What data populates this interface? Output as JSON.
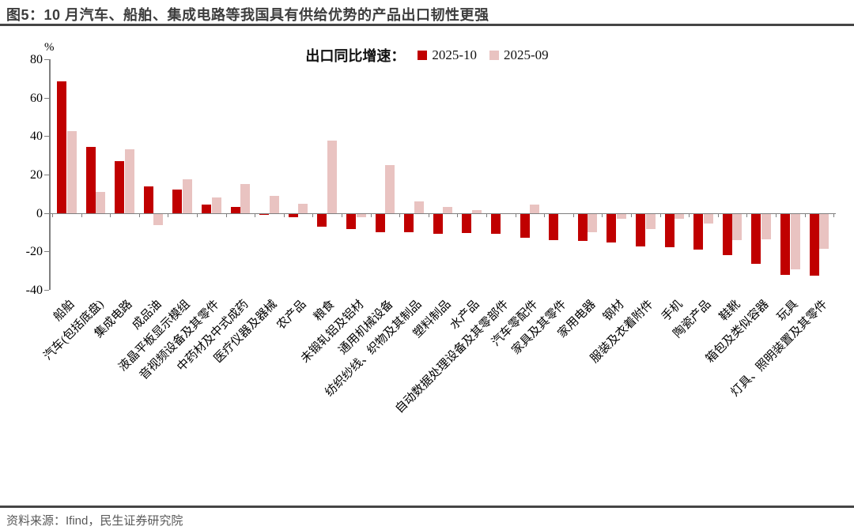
{
  "header": {
    "title": "图5：10 月汽车、船舶、集成电路等我国具有供给优势的产品出口韧性更强"
  },
  "legend": {
    "prefix": "出口同比增速：",
    "series1_label": "2025-10",
    "series2_label": "2025-09"
  },
  "footer": {
    "source": "资料来源：Ifind，民生证券研究院"
  },
  "colors": {
    "series1": "#C00000",
    "series2": "#E9C3C1",
    "axis": "#7f7f7f",
    "rule": "#454545",
    "footer_text": "#595959"
  },
  "chart_data": {
    "type": "bar",
    "title": "出口同比增速",
    "unit": "%",
    "ylabel": "%",
    "ylim": [
      -40,
      80
    ],
    "yticks": [
      80,
      60,
      40,
      20,
      0,
      -20,
      -40
    ],
    "grid": false,
    "legend_position": "top-center",
    "categories": [
      "船舶",
      "汽车(包括底盘)",
      "集成电路",
      "成品油",
      "液晶平板显示模组",
      "音视频设备及其零件",
      "中药材及中式成药",
      "医疗仪器及器械",
      "农产品",
      "粮食",
      "未锻轧铝及铝材",
      "通用机械设备",
      "纺织纱线、织物及其制品",
      "塑料制品",
      "水产品",
      "自动数据处理设备及其零部件",
      "汽车零配件",
      "家具及其零件",
      "家用电器",
      "钢材",
      "服装及衣着附件",
      "手机",
      "陶瓷产品",
      "鞋靴",
      "箱包及类似容器",
      "玩具",
      "灯具、照明装置及其零件"
    ],
    "series": [
      {
        "name": "2025-10",
        "color": "#C00000",
        "values": [
          68.5,
          34.5,
          27,
          14,
          12,
          4.5,
          3,
          -1,
          -2,
          -7,
          -8.5,
          -10,
          -10,
          -11,
          -10.5,
          -11,
          -13,
          -14,
          -14.5,
          -15.5,
          -17.5,
          -18,
          -19,
          -22,
          -26.5,
          -32,
          -32.5
        ]
      },
      {
        "name": "2025-09",
        "color": "#E9C3C1",
        "values": [
          42.5,
          11,
          33,
          -6.5,
          17.5,
          8,
          15,
          9,
          5,
          37.5,
          -2,
          25,
          6,
          3,
          1.5,
          0,
          4.5,
          0,
          -10,
          -3,
          -8.5,
          -3,
          -5.5,
          -14,
          -13.5,
          -29.5,
          -18.5
        ]
      }
    ]
  }
}
